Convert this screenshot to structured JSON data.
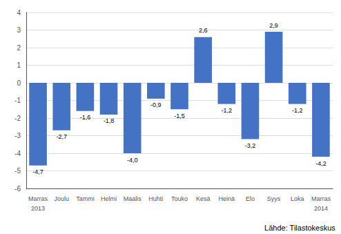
{
  "chart_data": {
    "type": "bar",
    "categories": [
      "Marras",
      "Joulu",
      "Tammi",
      "Helmi",
      "Maalis",
      "Huhti",
      "Touko",
      "Kesä",
      "Heinä",
      "Elo",
      "Syys",
      "Loka",
      "Marras"
    ],
    "values": [
      -4.7,
      -2.7,
      -1.6,
      -1.8,
      -4.0,
      -0.9,
      -1.5,
      2.6,
      -1.2,
      -3.2,
      2.9,
      -1.2,
      -4.2
    ],
    "value_labels": [
      "-4,7",
      "-2,7",
      "-1,6",
      "-1,8",
      "-4,0",
      "-0,9",
      "-1,5",
      "2,6",
      "-1,2",
      "-3,2",
      "2,9",
      "-1,2",
      "-4,2"
    ],
    "data_labels": true,
    "color": "#4472C4",
    "ylim": [
      -6,
      4
    ],
    "yticks": [
      -6,
      -5,
      -4,
      -3,
      -2,
      -1,
      0,
      1,
      2,
      3,
      4
    ],
    "grid": true,
    "annotations": [
      {
        "text": "2013",
        "index": 0
      },
      {
        "text": "2014",
        "index": 12
      }
    ],
    "source": "Lähde: Tilastokeskus"
  }
}
